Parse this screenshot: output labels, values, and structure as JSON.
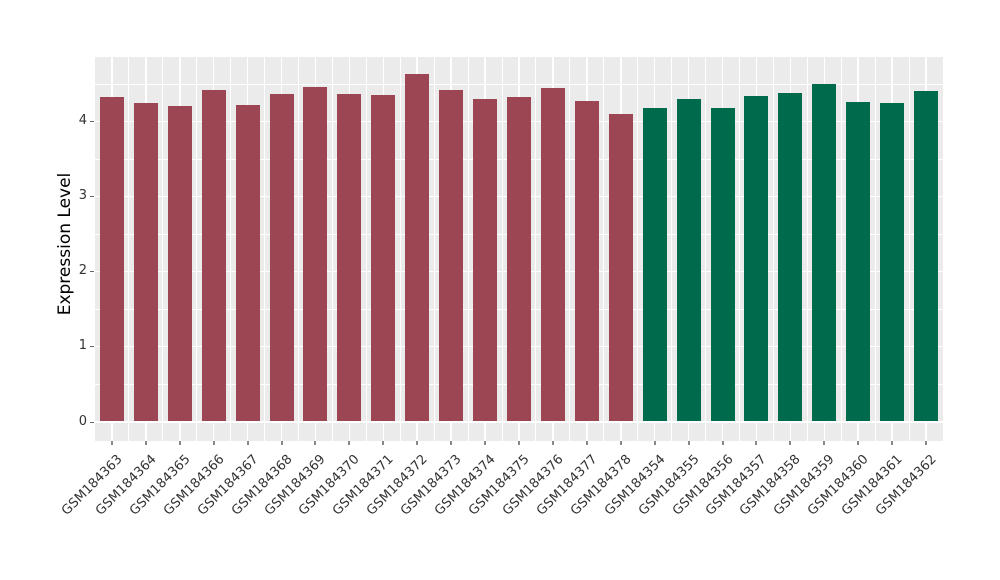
{
  "chart_data": {
    "type": "bar",
    "title": "",
    "xlabel": "",
    "ylabel": "Expression Level",
    "yticks": [
      0,
      1,
      2,
      3,
      4
    ],
    "ylim": [
      0,
      4.85
    ],
    "grid": "major and minor white gridlines on gray panel (ggplot style)",
    "legend_position": "none",
    "categories": [
      "GSM184363",
      "GSM184364",
      "GSM184365",
      "GSM184366",
      "GSM184367",
      "GSM184368",
      "GSM184369",
      "GSM184370",
      "GSM184371",
      "GSM184372",
      "GSM184373",
      "GSM184374",
      "GSM184375",
      "GSM184376",
      "GSM184377",
      "GSM184378",
      "GSM184354",
      "GSM184355",
      "GSM184356",
      "GSM184357",
      "GSM184358",
      "GSM184359",
      "GSM184360",
      "GSM184361",
      "GSM184362"
    ],
    "values": [
      4.32,
      4.24,
      4.2,
      4.42,
      4.22,
      4.36,
      4.45,
      4.36,
      4.35,
      4.63,
      4.42,
      4.29,
      4.32,
      4.44,
      4.27,
      4.09,
      4.18,
      4.29,
      4.17,
      4.34,
      4.38,
      4.49,
      4.25,
      4.24,
      4.4
    ],
    "groups": [
      "group1",
      "group1",
      "group1",
      "group1",
      "group1",
      "group1",
      "group1",
      "group1",
      "group1",
      "group1",
      "group1",
      "group1",
      "group1",
      "group1",
      "group1",
      "group1",
      "group2",
      "group2",
      "group2",
      "group2",
      "group2",
      "group2",
      "group2",
      "group2",
      "group2"
    ],
    "group_colors": {
      "group1": "#9C4553",
      "group2": "#006B4C"
    }
  },
  "style": {
    "background": "#FFFFFF",
    "panel_background": "#EBEBEB",
    "gridline_color": "#FFFFFF",
    "tick_label_color": "#333333",
    "axis_title_color": "#000000"
  }
}
